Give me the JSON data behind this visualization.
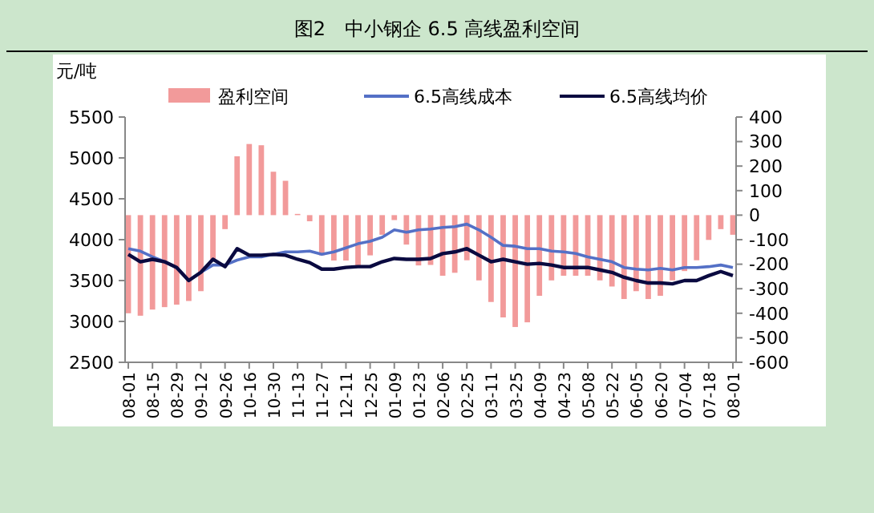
{
  "chart_data": {
    "type": "line",
    "title": "图2　中小钢企 6.5 高线盈利空间",
    "ylabel": "元/吨",
    "categories": [
      "08-01",
      null,
      "08-15",
      null,
      "08-29",
      null,
      "09-12",
      null,
      "09-26",
      null,
      "10-16",
      null,
      "10-30",
      null,
      "11-13",
      null,
      "11-27",
      null,
      "12-11",
      null,
      "12-25",
      null,
      "01-09",
      null,
      "01-23",
      null,
      "02-06",
      null,
      "02-25",
      null,
      "03-11",
      null,
      "03-25",
      null,
      "04-09",
      null,
      "04-23",
      null,
      "05-08",
      null,
      "05-22",
      null,
      "06-05",
      null,
      "06-20",
      null,
      "07-04",
      null,
      "07-18",
      null,
      "08-01"
    ],
    "series": [
      {
        "name": "盈利空间",
        "type": "bar",
        "axis": "y2",
        "color": "#f29a9a",
        "values": [
          -400,
          -410,
          -385,
          -375,
          -365,
          -350,
          -310,
          -185,
          -57,
          240,
          290,
          285,
          177,
          140,
          5,
          -25,
          -164,
          -185,
          -185,
          -205,
          -164,
          -80,
          -20,
          -120,
          -205,
          -203,
          -247,
          -235,
          -184,
          -266,
          -354,
          -417,
          -456,
          -437,
          -329,
          -266,
          -247,
          -247,
          -247,
          -266,
          -291,
          -342,
          -310,
          -342,
          -329,
          -266,
          -228,
          -184,
          -101,
          -57,
          -80
        ]
      },
      {
        "name": "6.5高线成本",
        "color": "#5470c6",
        "values": [
          3890,
          3860,
          3790,
          3730,
          3660,
          3500,
          3600,
          3690,
          3690,
          3750,
          3790,
          3790,
          3820,
          3850,
          3850,
          3860,
          3820,
          3850,
          3900,
          3950,
          3980,
          4030,
          4120,
          4090,
          4120,
          4130,
          4150,
          4160,
          4190,
          4120,
          4030,
          3930,
          3920,
          3890,
          3890,
          3860,
          3850,
          3830,
          3790,
          3760,
          3730,
          3660,
          3640,
          3630,
          3650,
          3630,
          3660,
          3660,
          3670,
          3690,
          3660
        ]
      },
      {
        "name": "6.5高线均价",
        "color": "#0a0a40",
        "values": [
          3820,
          3730,
          3760,
          3730,
          3660,
          3500,
          3600,
          3760,
          3670,
          3890,
          3810,
          3810,
          3820,
          3810,
          3760,
          3720,
          3640,
          3640,
          3660,
          3670,
          3670,
          3730,
          3770,
          3760,
          3760,
          3770,
          3830,
          3850,
          3890,
          3810,
          3730,
          3760,
          3730,
          3700,
          3710,
          3690,
          3660,
          3660,
          3660,
          3630,
          3600,
          3540,
          3500,
          3470,
          3470,
          3460,
          3500,
          3500,
          3560,
          3610,
          3560
        ]
      }
    ],
    "ylim": [
      2500,
      5500
    ],
    "yticks": [
      2500,
      3000,
      3500,
      4000,
      4500,
      5000,
      5500
    ],
    "y2lim": [
      -600,
      400
    ],
    "y2ticks": [
      -600,
      -500,
      -400,
      -300,
      -200,
      -100,
      0,
      100,
      200,
      300,
      400
    ],
    "legend": "top",
    "grid": false
  }
}
